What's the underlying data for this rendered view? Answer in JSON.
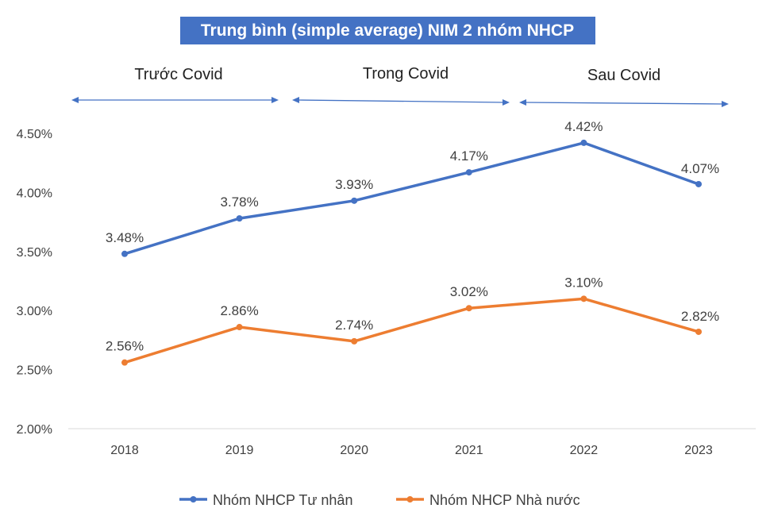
{
  "colors": {
    "title_bg": "#4472C4",
    "series_private": "#4472C4",
    "series_state": "#ED7D31",
    "arrow": "#4472C4"
  },
  "chart_data": {
    "type": "line",
    "title": "Trung bình (simple average) NIM 2 nhóm NHCP",
    "categories": [
      "2018",
      "2019",
      "2020",
      "2021",
      "2022",
      "2023"
    ],
    "y_ticks": [
      "2.00%",
      "2.50%",
      "3.00%",
      "3.50%",
      "4.00%",
      "4.50%"
    ],
    "ylim": [
      2.0,
      4.6
    ],
    "ylabel": "",
    "xlabel": "",
    "grid": false,
    "legend": "bottom",
    "periods": [
      {
        "label": "Trước Covid",
        "from": "2018",
        "to": "2019"
      },
      {
        "label": "Trong Covid",
        "from": "2020",
        "to": "2021"
      },
      {
        "label": "Sau Covid",
        "from": "2022",
        "to": "2023"
      }
    ],
    "series": [
      {
        "name": "Nhóm NHCP Tư nhân",
        "color": "#4472C4",
        "values": [
          3.48,
          3.78,
          3.93,
          4.17,
          4.42,
          4.07
        ],
        "labels": [
          "3.48%",
          "3.78%",
          "3.93%",
          "4.17%",
          "4.42%",
          "4.07%"
        ]
      },
      {
        "name": "Nhóm NHCP Nhà nước",
        "color": "#ED7D31",
        "values": [
          2.56,
          2.86,
          2.74,
          3.02,
          3.1,
          2.82
        ],
        "labels": [
          "2.56%",
          "2.86%",
          "2.74%",
          "3.02%",
          "3.10%",
          "2.82%"
        ]
      }
    ]
  }
}
